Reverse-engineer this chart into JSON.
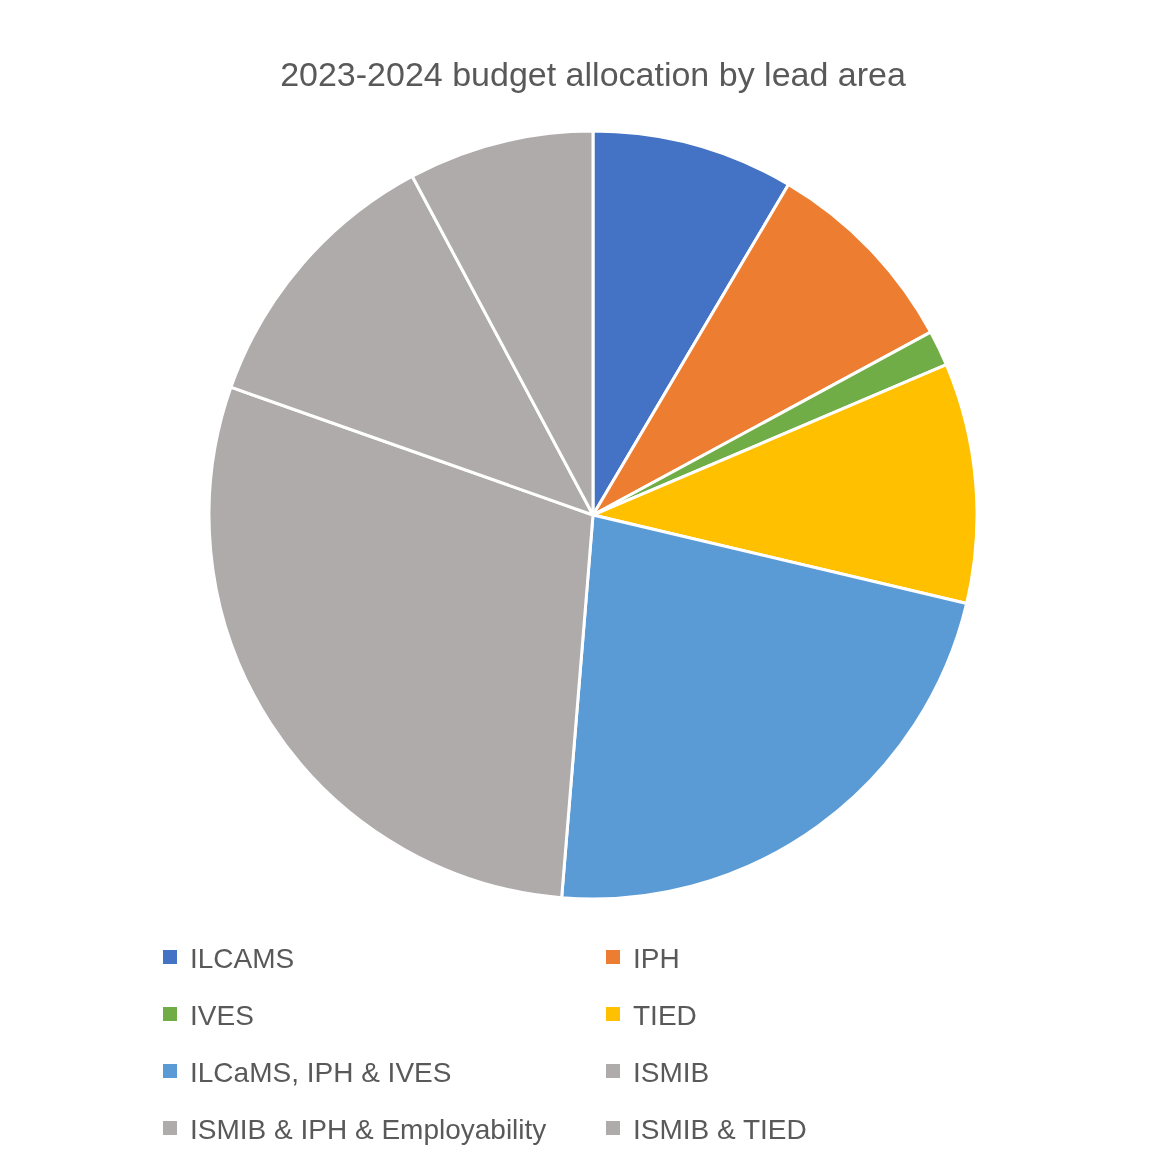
{
  "chart_data": {
    "type": "pie",
    "title": "2023-2024 budget allocation by lead area",
    "categories": [
      "ILCAMS",
      "IPH",
      "IVES",
      "TIED",
      "ILCaMS, IPH & IVES",
      "ISMIB",
      "ISMIB & IPH & Employability",
      "ISMIB & TIED"
    ],
    "values": [
      8.5,
      8.6,
      1.5,
      10.1,
      22.6,
      29.1,
      11.8,
      7.8
    ],
    "colors": [
      "#4472c4",
      "#ed7d31",
      "#70ad47",
      "#ffc000",
      "#5b9bd5",
      "#afabab",
      "#afabab",
      "#afabab"
    ],
    "legend": "bottom"
  }
}
